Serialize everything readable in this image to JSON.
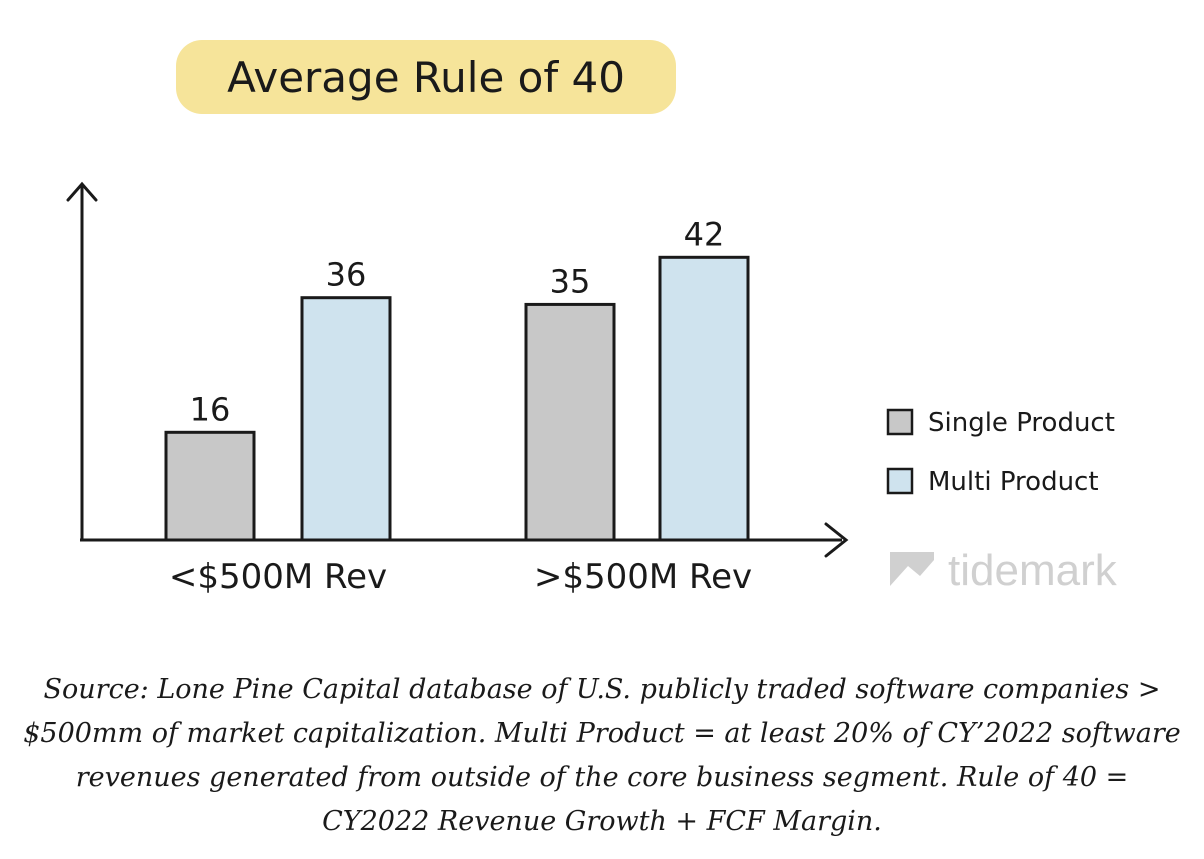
{
  "chart_data": {
    "type": "bar",
    "title": "Average Rule of 40",
    "categories": [
      "<$500M Rev",
      ">$500M Rev"
    ],
    "series": [
      {
        "name": "Single Product",
        "values": [
          16,
          35
        ],
        "color": "#c8c8c8"
      },
      {
        "name": "Multi Product",
        "values": [
          36,
          42
        ],
        "color": "#cfe3ee"
      }
    ],
    "ylim": [
      0,
      52
    ],
    "grid": false,
    "legend_position": "right",
    "highlight_color": "#f6e49a"
  },
  "watermark": {
    "text": "tidemark",
    "color": "#d0d0d0"
  },
  "caption": "Source: Lone Pine Capital database of U.S. publicly traded software companies > $500mm of market capitalization. Multi Product = at least 20% of CY’2022 software revenues generated from outside of the core business segment. Rule of 40 = CY2022 Revenue Growth + FCF Margin."
}
